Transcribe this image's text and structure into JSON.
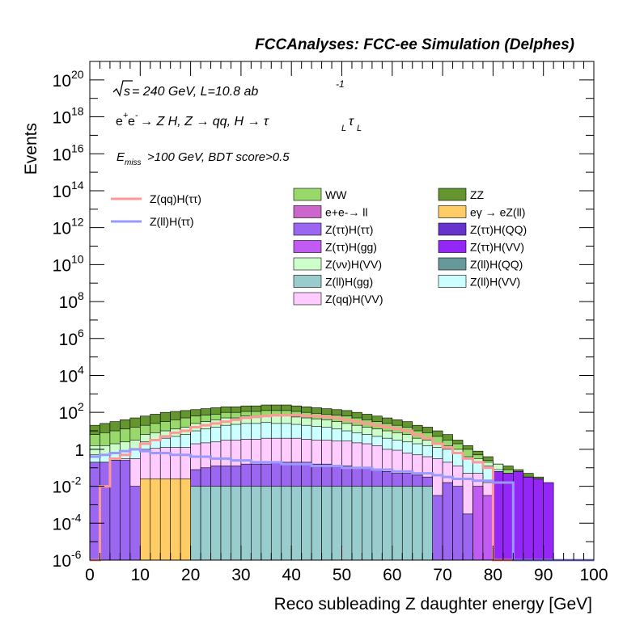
{
  "chart_data": {
    "type": "histogram",
    "title": "FCCAnalyses: FCC-ee Simulation (Delphes)",
    "annotations": {
      "sqrts_prefix": "s",
      "energy": " = 240 GeV, L=10.8 ab",
      "lumi_sup": "-1",
      "process_a": "e",
      "process_b": "e",
      "process_c": " → Z H, Z  → qq, H  → τ",
      "process_l1": "L",
      "process_tau2": "τ",
      "process_l2": "L",
      "cut_e": "E",
      "cut_sub": "miss",
      "cut_rest": ">100 GeV, BDT score>0.5"
    },
    "xlabel": "Reco subleading Z daughter energy [GeV]",
    "ylabel": "Events",
    "xlim": [
      0,
      100
    ],
    "ylim_log10": [
      -6,
      21
    ],
    "log_y": true,
    "xticks": [
      "0",
      "10",
      "20",
      "30",
      "40",
      "50",
      "60",
      "70",
      "80",
      "90",
      "100"
    ],
    "yticks": [
      {
        "base": "10",
        "exp": "-6",
        "v": -6
      },
      {
        "base": "10",
        "exp": "-4",
        "v": -4
      },
      {
        "base": "10",
        "exp": "-2",
        "v": -2
      },
      {
        "base": "1",
        "exp": "",
        "v": 0
      },
      {
        "base": "10",
        "exp": "2",
        "v": 2
      },
      {
        "base": "10",
        "exp": "4",
        "v": 4
      },
      {
        "base": "10",
        "exp": "6",
        "v": 6
      },
      {
        "base": "10",
        "exp": "8",
        "v": 8
      },
      {
        "base": "10",
        "exp": "10",
        "v": 10
      },
      {
        "base": "10",
        "exp": "12",
        "v": 12
      },
      {
        "base": "10",
        "exp": "14",
        "v": 14
      },
      {
        "base": "10",
        "exp": "16",
        "v": 16
      },
      {
        "base": "10",
        "exp": "18",
        "v": 18
      },
      {
        "base": "10",
        "exp": "20",
        "v": 20
      }
    ],
    "bin_width": 2,
    "stack_log10_upper_edges": [
      {
        "name": "Z(qq)H(VV)",
        "color": "#FFCCFF",
        "log10": [
          -0.7,
          -0.7,
          -0.6,
          -0.5,
          -0.5,
          0.0,
          0.05,
          0.1,
          0.1,
          0.1,
          0.3,
          0.35,
          0.4,
          0.5,
          0.5,
          0.55,
          0.55,
          0.6,
          0.6,
          0.6,
          0.6,
          0.55,
          0.5,
          0.5,
          0.45,
          0.45,
          0.35,
          0.3,
          0.2,
          0.0,
          -0.05,
          -0.2,
          -0.3,
          -0.4,
          -0.5,
          -0.7,
          -0.9,
          -1.3,
          -1.3,
          -1.8,
          -1.8,
          -3.0,
          -3.0,
          -3.5,
          -3.5,
          -6.5,
          -6.5,
          -6.5,
          -6.5,
          -6.5
        ]
      },
      {
        "name": "Z(ll)H(VV)",
        "color": "#CCFFFF",
        "log10": [
          -0.3,
          -0.3,
          -0.2,
          -0.1,
          0.0,
          0.4,
          0.5,
          0.6,
          0.7,
          0.8,
          1.0,
          1.1,
          1.2,
          1.3,
          1.35,
          1.4,
          1.4,
          1.45,
          1.4,
          1.4,
          1.35,
          1.3,
          1.25,
          1.2,
          1.1,
          1.0,
          0.9,
          0.8,
          0.7,
          0.6,
          0.5,
          0.4,
          0.3,
          0.2,
          0.1,
          0.0,
          -0.2,
          -0.5,
          -0.7,
          -0.9,
          -1.1,
          -1.6,
          -1.7,
          -2.2,
          -2.2,
          -6.5,
          -6.5,
          -6.5,
          -6.5,
          -6.5
        ]
      },
      {
        "name": "Z(νν)H(VV)",
        "color": "#CCFFCC",
        "log10": [
          0.2,
          0.2,
          0.3,
          0.4,
          0.5,
          0.8,
          0.9,
          1.0,
          1.1,
          1.2,
          1.4,
          1.5,
          1.6,
          1.7,
          1.7,
          1.8,
          1.8,
          1.8,
          1.8,
          1.8,
          1.75,
          1.7,
          1.65,
          1.6,
          1.5,
          1.4,
          1.3,
          1.2,
          1.1,
          1.0,
          0.9,
          0.8,
          0.6,
          0.5,
          0.35,
          0.2,
          0.0,
          -0.4,
          -0.5,
          -0.7,
          -0.8,
          -1.3,
          -1.4,
          -1.6,
          -1.8,
          -6.5,
          -6.5,
          -6.5,
          -6.5,
          -6.5
        ]
      },
      {
        "name": "WW",
        "color": "#99D96B",
        "log10": [
          0.8,
          0.9,
          1.0,
          1.1,
          1.2,
          1.3,
          1.4,
          1.5,
          1.6,
          1.7,
          1.8,
          1.85,
          1.9,
          2.0,
          2.0,
          2.05,
          2.05,
          2.1,
          2.1,
          2.1,
          2.05,
          2.0,
          1.95,
          1.9,
          1.85,
          1.8,
          1.7,
          1.6,
          1.5,
          1.4,
          1.3,
          1.2,
          1.0,
          0.9,
          0.7,
          0.5,
          0.3,
          0.0,
          -0.3,
          -0.6,
          -1.0,
          -1.1,
          -1.3,
          -1.5,
          -1.6,
          -6.5,
          -6.5,
          -6.5,
          -6.5,
          -6.5
        ]
      },
      {
        "name": "ZZ",
        "color": "#64952E",
        "log10": [
          1.3,
          1.4,
          1.5,
          1.6,
          1.7,
          1.8,
          1.9,
          2.0,
          2.05,
          2.1,
          2.15,
          2.2,
          2.25,
          2.3,
          2.3,
          2.35,
          2.35,
          2.4,
          2.4,
          2.4,
          2.35,
          2.3,
          2.25,
          2.2,
          2.15,
          2.1,
          2.0,
          1.9,
          1.8,
          1.7,
          1.6,
          1.5,
          1.3,
          1.2,
          1.0,
          0.8,
          0.5,
          0.2,
          -0.1,
          -0.4,
          -0.8,
          -0.9,
          -1.1,
          -1.3,
          -1.5,
          -6.5,
          -6.5,
          -6.5,
          -6.5,
          -6.5
        ]
      }
    ],
    "lower_layers": [
      {
        "name": "Z(ττ)H(ττ)",
        "color": "#9B67F0",
        "log10": [
          -0.7,
          -0.7,
          -0.6,
          -0.6,
          -2.0,
          -2.0,
          -2.0,
          -2.0,
          -2.0,
          -2.0,
          -1.1,
          -1.0,
          -0.9,
          -0.9,
          -0.9,
          -0.8,
          -0.8,
          -0.8,
          -0.7,
          -0.7,
          -0.7,
          -0.7,
          -0.8,
          -0.8,
          -0.9,
          -0.9,
          -1.0,
          -1.0,
          -1.1,
          -1.2,
          -1.3,
          -1.3,
          -1.4,
          -1.5,
          -2.5,
          -1.8,
          -2.0,
          -3.5,
          -3.5,
          -3.0,
          -3.5,
          -4.0,
          -6.5,
          -6.5,
          -6.5,
          -6.5,
          -6.5,
          -6.5,
          -6.5,
          -6.5
        ]
      },
      {
        "name": "Z(ττ)H(VV)",
        "color": "#9427F5",
        "log10": [
          -6.5,
          -6.5,
          -6.5,
          -6.5,
          -6.5,
          -6.5,
          -6.5,
          -6.5,
          -6.5,
          -6.5,
          -6.5,
          -6.5,
          -6.5,
          -6.5,
          -6.5,
          -6.5,
          -6.5,
          -6.5,
          -6.5,
          -6.5,
          -6.5,
          -6.5,
          -6.5,
          -6.5,
          -6.5,
          -6.5,
          -6.5,
          -6.5,
          -6.5,
          -6.5,
          -6.5,
          -6.5,
          -6.5,
          -6.5,
          -6.5,
          -6.5,
          -6.5,
          -6.5,
          -6.5,
          -6.5,
          -1.2,
          -1.3,
          -1.2,
          -1.5,
          -1.6,
          -1.8,
          -6.5,
          -6.5,
          -6.5,
          -6.5
        ]
      },
      {
        "name": "Z(ττ)H(gg)",
        "color": "#C05CF2",
        "log10": [
          -6.5,
          -6.5,
          -6.5,
          -6.5,
          -6.5,
          -6.5,
          -6.5,
          -6.5,
          -6.5,
          -6.5,
          -6.5,
          -6.5,
          -6.5,
          -6.5,
          -6.5,
          -6.5,
          -6.5,
          -6.5,
          -6.5,
          -6.5,
          -6.5,
          -6.5,
          -6.5,
          -6.5,
          -6.5,
          -6.5,
          -6.5,
          -6.5,
          -6.5,
          -6.5,
          -6.5,
          -6.5,
          -6.5,
          -6.5,
          -6.5,
          -6.5,
          -6.5,
          -6.5,
          -2.0,
          -2.5,
          -6.5,
          -6.5,
          -6.5,
          -6.5,
          -6.5,
          -6.5,
          -6.5,
          -6.5,
          -6.5,
          -6.5
        ]
      },
      {
        "name": "Z(ll)H(gg)",
        "color": "#99CCCC",
        "log10": [
          -6.5,
          -6.5,
          -6.5,
          -6.5,
          -6.5,
          -6.5,
          -6.5,
          -6.5,
          -6.5,
          -6.5,
          -2.0,
          -2.0,
          -2.0,
          -2.0,
          -2.0,
          -2.0,
          -2.0,
          -2.0,
          -2.0,
          -2.0,
          -2.0,
          -2.0,
          -2.0,
          -2.0,
          -2.0,
          -2.0,
          -2.0,
          -2.0,
          -2.0,
          -2.0,
          -2.0,
          -2.0,
          -2.0,
          -2.0,
          -6.5,
          -6.5,
          -6.5,
          -6.5,
          -6.5,
          -6.5,
          -6.5,
          -6.5,
          -6.5,
          -6.5,
          -6.5,
          -6.5,
          -6.5,
          -6.5,
          -6.5,
          -6.5
        ]
      },
      {
        "name": "eγ → eZ(ll)",
        "color": "#FFCC66",
        "log10": [
          -6.5,
          -6.5,
          -6.5,
          -6.5,
          -6.5,
          -1.6,
          -1.6,
          -1.6,
          -1.6,
          -1.6,
          -6.5,
          -6.5,
          -6.5,
          -6.5,
          -6.5,
          -6.5,
          -6.5,
          -6.5,
          -6.5,
          -6.5,
          -6.5,
          -6.5,
          -6.5,
          -6.5,
          -6.5,
          -6.5,
          -6.5,
          -6.5,
          -6.5,
          -6.5,
          -6.5,
          -6.5,
          -6.5,
          -6.5,
          -6.5,
          -6.5,
          -6.5,
          -6.5,
          -6.5,
          -6.5,
          -6.5,
          -6.5,
          -6.5,
          -6.5,
          -6.5,
          -6.5,
          -6.5,
          -6.5,
          -6.5,
          -6.5
        ]
      },
      {
        "name": "Z(ττ)H(QQ)",
        "color": "#6633CC",
        "log10": [
          -6.5,
          -6.5,
          -6.5,
          -6.5,
          -6.5,
          -6.5,
          -6.5,
          -6.5,
          -6.5,
          -6.5,
          -6.5,
          -6.5,
          -6.5,
          -6.5,
          -6.5,
          -6.5,
          -6.5,
          -6.5,
          -6.5,
          -6.5,
          -6.5,
          -6.5,
          -6.5,
          -6.5,
          -6.5,
          -6.5,
          -6.5,
          -6.5,
          -6.5,
          -6.5,
          -6.5,
          -6.5,
          -6.5,
          -6.5,
          -6.5,
          -6.5,
          -6.5,
          -6.5,
          -6.5,
          -6.5,
          -6.5,
          -6.5,
          -6.5,
          -6.5,
          -6.5,
          -6.5,
          -6.5,
          -6.5,
          -6.5,
          -6.5
        ]
      }
    ],
    "lines": [
      {
        "name": "Z(qq)H(ττ)",
        "color": "#FF9999",
        "log10": [
          -6.5,
          -2.0,
          -0.5,
          -0.3,
          0.0,
          0.3,
          0.5,
          0.7,
          0.9,
          1.0,
          1.2,
          1.3,
          1.4,
          1.5,
          1.6,
          1.7,
          1.75,
          1.8,
          1.85,
          1.85,
          1.85,
          1.8,
          1.8,
          1.75,
          1.7,
          1.6,
          1.5,
          1.4,
          1.3,
          1.2,
          1.1,
          1.0,
          0.8,
          0.6,
          0.3,
          0.1,
          -0.2,
          -0.5,
          -0.7,
          -1.0,
          -6.5,
          -6.5,
          -6.5,
          -6.5,
          -6.5,
          -6.5,
          -6.5,
          -6.5,
          -6.5,
          -6.5
        ]
      },
      {
        "name": "Z(ll)H(ττ)",
        "color": "#9999FF",
        "log10": [
          -0.4,
          -0.3,
          -0.2,
          -0.1,
          0.0,
          -0.1,
          -0.2,
          -0.2,
          -0.3,
          -0.3,
          -0.4,
          -0.4,
          -0.5,
          -0.5,
          -0.6,
          -0.6,
          -0.7,
          -0.7,
          -0.7,
          -0.8,
          -0.8,
          -0.8,
          -0.9,
          -0.9,
          -0.9,
          -1.0,
          -1.0,
          -1.0,
          -1.1,
          -1.1,
          -1.2,
          -1.2,
          -1.3,
          -1.3,
          -1.4,
          -1.5,
          -1.6,
          -1.6,
          -1.7,
          -1.7,
          -1.8,
          -1.8,
          -6.5,
          -6.5,
          -6.5,
          -6.5,
          -6.5,
          -6.5,
          -6.5,
          -6.5
        ]
      }
    ],
    "legend_left": [
      {
        "label": "Z(qq)H(ττ)",
        "color": "#FF9999",
        "kind": "line"
      },
      {
        "label": "Z(ll)H(ττ)",
        "color": "#9999FF",
        "kind": "line"
      }
    ],
    "legend_mid": [
      {
        "label": "WW",
        "color": "#99D96B"
      },
      {
        "label": "e+e-→ ll",
        "color": "#CC66CC"
      },
      {
        "label": "Z(ττ)H(ττ)",
        "color": "#9B67F0"
      },
      {
        "label": "Z(ττ)H(gg)",
        "color": "#C05CF2"
      },
      {
        "label": "Z(νν)H(VV)",
        "color": "#CCFFCC"
      },
      {
        "label": "Z(ll)H(gg)",
        "color": "#99CCCC"
      },
      {
        "label": "Z(qq)H(VV)",
        "color": "#FFCCFF"
      }
    ],
    "legend_right": [
      {
        "label": "ZZ",
        "color": "#64952E"
      },
      {
        "label": "eγ → eZ(ll)",
        "color": "#FFCC66"
      },
      {
        "label": "Z(ττ)H(QQ)",
        "color": "#6633CC"
      },
      {
        "label": "Z(ττ)H(VV)",
        "color": "#9427F5"
      },
      {
        "label": "Z(ll)H(QQ)",
        "color": "#669999"
      },
      {
        "label": "Z(ll)H(VV)",
        "color": "#CCFFFF"
      }
    ]
  }
}
